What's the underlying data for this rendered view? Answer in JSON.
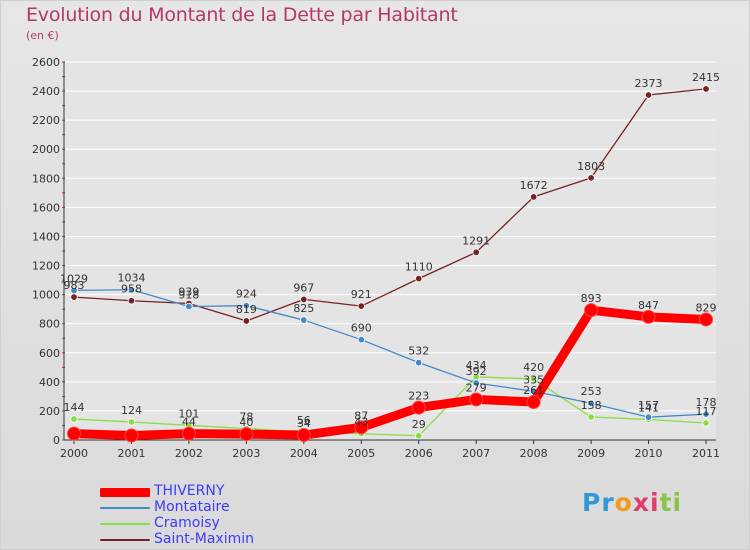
{
  "title": "Evolution du Montant de la Dette par Habitant",
  "unit": "(en €)",
  "colors": {
    "title": "#b5376a",
    "legend_text": "#3b3bff",
    "grid": "#ffffff",
    "axis": "#333333"
  },
  "logo": {
    "letters": [
      "P",
      "r",
      "o",
      "x",
      "i",
      "t",
      "i"
    ],
    "colors": [
      "#2f9ad6",
      "#2f9ad6",
      "#f29a1e",
      "#e23c6a",
      "#e23c6a",
      "#8bc34a",
      "#8bc34a"
    ]
  },
  "chart_data": {
    "type": "line",
    "title": "Evolution du Montant de la Dette par Habitant",
    "ylabel": "(en €)",
    "xlabel": "",
    "x": [
      "2000",
      "2001",
      "2002",
      "2003",
      "2004",
      "2005",
      "2006",
      "2007",
      "2008",
      "2009",
      "2010",
      "2011"
    ],
    "ylim": [
      0,
      2600
    ],
    "yticks": [
      0,
      200,
      400,
      600,
      800,
      1000,
      1200,
      1400,
      1600,
      1800,
      2000,
      2200,
      2400,
      2600
    ],
    "grid": true,
    "legend_position": "bottom-left",
    "series": [
      {
        "name": "THIVERNY",
        "color": "#ff0000",
        "values": [
          44,
          31,
          44,
          40,
          34,
          87,
          223,
          279,
          261,
          893,
          847,
          829
        ],
        "labels": [
          "",
          "",
          "44",
          "40",
          "34",
          "87",
          "223",
          "279",
          "261",
          "893",
          "847",
          "829"
        ]
      },
      {
        "name": "Montataire",
        "color": "#4488cc",
        "values": [
          1029,
          1034,
          918,
          924,
          825,
          690,
          532,
          392,
          335,
          253,
          157,
          178
        ],
        "labels": [
          "1029",
          "1034",
          "918",
          "924",
          "825",
          "690",
          "532",
          "392",
          "335",
          "253",
          "157",
          "178"
        ]
      },
      {
        "name": "Cramoisy",
        "color": "#88dd44",
        "values": [
          144,
          124,
          101,
          78,
          56,
          43,
          29,
          434,
          420,
          158,
          141,
          117
        ],
        "labels": [
          "144",
          "124",
          "101",
          "78",
          "56",
          "43",
          "29",
          "434",
          "420",
          "158",
          "141",
          "117"
        ]
      },
      {
        "name": "Saint-Maximin",
        "color": "#772222",
        "values": [
          983,
          958,
          939,
          819,
          967,
          921,
          1110,
          1291,
          1672,
          1803,
          2373,
          2415
        ],
        "labels": [
          "983",
          "958",
          "939",
          "819",
          "967",
          "921",
          "1110",
          "1291",
          "1672",
          "1803",
          "2373",
          "2415"
        ]
      }
    ]
  }
}
